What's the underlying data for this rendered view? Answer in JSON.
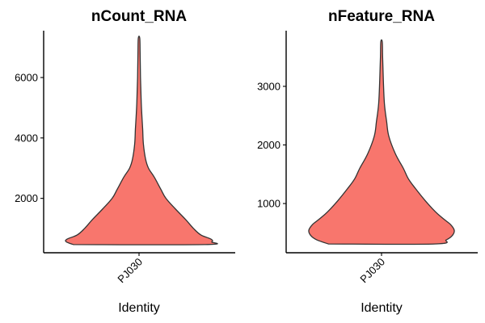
{
  "chart_data": [
    {
      "type": "violin",
      "title": "nCount_RNA",
      "xlabel": "Identity",
      "ylabel": "",
      "categories": [
        "PJ030"
      ],
      "yticks": [
        2000,
        4000,
        6000
      ],
      "ylim": [
        200,
        7550
      ],
      "fill_color": "#f8766d",
      "outline_color": "#333333",
      "density_profile": [
        {
          "y": 470,
          "w": 0.9
        },
        {
          "y": 560,
          "w": 1.0
        },
        {
          "y": 650,
          "w": 0.99
        },
        {
          "y": 790,
          "w": 0.85
        },
        {
          "y": 1000,
          "w": 0.75
        },
        {
          "y": 1300,
          "w": 0.64
        },
        {
          "y": 1650,
          "w": 0.5
        },
        {
          "y": 2000,
          "w": 0.37
        },
        {
          "y": 2300,
          "w": 0.3
        },
        {
          "y": 2700,
          "w": 0.21
        },
        {
          "y": 3000,
          "w": 0.13
        },
        {
          "y": 3300,
          "w": 0.09
        },
        {
          "y": 3800,
          "w": 0.06
        },
        {
          "y": 4300,
          "w": 0.05
        },
        {
          "y": 4700,
          "w": 0.04
        },
        {
          "y": 5200,
          "w": 0.03
        },
        {
          "y": 6000,
          "w": 0.02
        },
        {
          "y": 6800,
          "w": 0.015
        },
        {
          "y": 7300,
          "w": 0.01
        }
      ]
    },
    {
      "type": "violin",
      "title": "nFeature_RNA",
      "xlabel": "Identity",
      "ylabel": "",
      "categories": [
        "PJ030"
      ],
      "yticks": [
        1000,
        2000,
        3000
      ],
      "ylim": [
        160,
        3950
      ],
      "fill_color": "#f8766d",
      "outline_color": "#333333",
      "density_profile": [
        {
          "y": 310,
          "w": 0.73
        },
        {
          "y": 380,
          "w": 0.89
        },
        {
          "y": 450,
          "w": 0.97
        },
        {
          "y": 540,
          "w": 1.0
        },
        {
          "y": 640,
          "w": 0.95
        },
        {
          "y": 740,
          "w": 0.85
        },
        {
          "y": 860,
          "w": 0.74
        },
        {
          "y": 1050,
          "w": 0.6
        },
        {
          "y": 1250,
          "w": 0.47
        },
        {
          "y": 1420,
          "w": 0.37
        },
        {
          "y": 1600,
          "w": 0.3
        },
        {
          "y": 1850,
          "w": 0.19
        },
        {
          "y": 2150,
          "w": 0.1
        },
        {
          "y": 2400,
          "w": 0.07
        },
        {
          "y": 2700,
          "w": 0.04
        },
        {
          "y": 3100,
          "w": 0.025
        },
        {
          "y": 3500,
          "w": 0.015
        },
        {
          "y": 3760,
          "w": 0.01
        }
      ]
    }
  ]
}
